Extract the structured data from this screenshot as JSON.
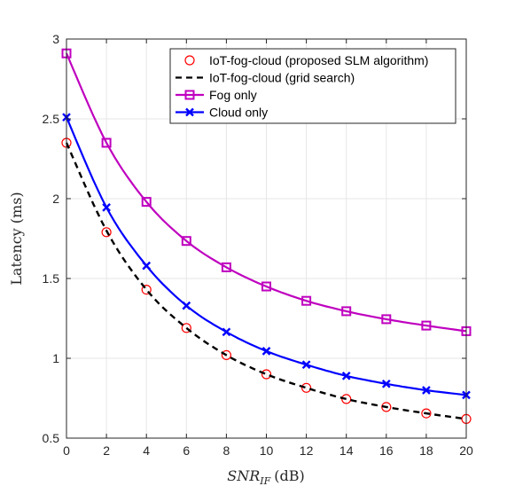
{
  "chart_data": {
    "type": "line",
    "xlabel": "SNR",
    "xlabel_sub": "IF",
    "xlabel_unit": "(dB)",
    "ylabel": "Latency (ms)",
    "xlim": [
      0,
      20
    ],
    "ylim": [
      0.5,
      3
    ],
    "xticks": [
      0,
      2,
      4,
      6,
      8,
      10,
      12,
      14,
      16,
      18,
      20
    ],
    "yticks": [
      0.5,
      1,
      1.5,
      2,
      2.5,
      3
    ],
    "ytick_labels": [
      "0.5",
      "1",
      "1.5",
      "2",
      "2.5",
      "3"
    ],
    "grid": true,
    "legend_position": "top-right",
    "x": [
      0,
      2,
      4,
      6,
      8,
      10,
      12,
      14,
      16,
      18,
      20
    ],
    "series": [
      {
        "name": "IoT-fog-cloud (proposed SLM algorithm)",
        "style": "markers-circle",
        "color": "#ff0000",
        "values": [
          2.35,
          1.79,
          1.43,
          1.19,
          1.02,
          0.9,
          0.815,
          0.745,
          0.695,
          0.655,
          0.62
        ]
      },
      {
        "name": "IoT-fog-cloud (grid search)",
        "style": "dashed",
        "color": "#000000",
        "values": [
          2.35,
          1.8,
          1.43,
          1.19,
          1.02,
          0.9,
          0.815,
          0.745,
          0.695,
          0.655,
          0.62
        ]
      },
      {
        "name": "Fog only",
        "style": "line-square",
        "color": "#bf00bf",
        "values": [
          2.91,
          2.35,
          1.98,
          1.735,
          1.57,
          1.45,
          1.36,
          1.295,
          1.245,
          1.205,
          1.17
        ]
      },
      {
        "name": "Cloud only",
        "style": "line-x",
        "color": "#0000ff",
        "values": [
          2.51,
          1.945,
          1.58,
          1.33,
          1.165,
          1.045,
          0.96,
          0.89,
          0.84,
          0.8,
          0.77
        ]
      }
    ]
  }
}
